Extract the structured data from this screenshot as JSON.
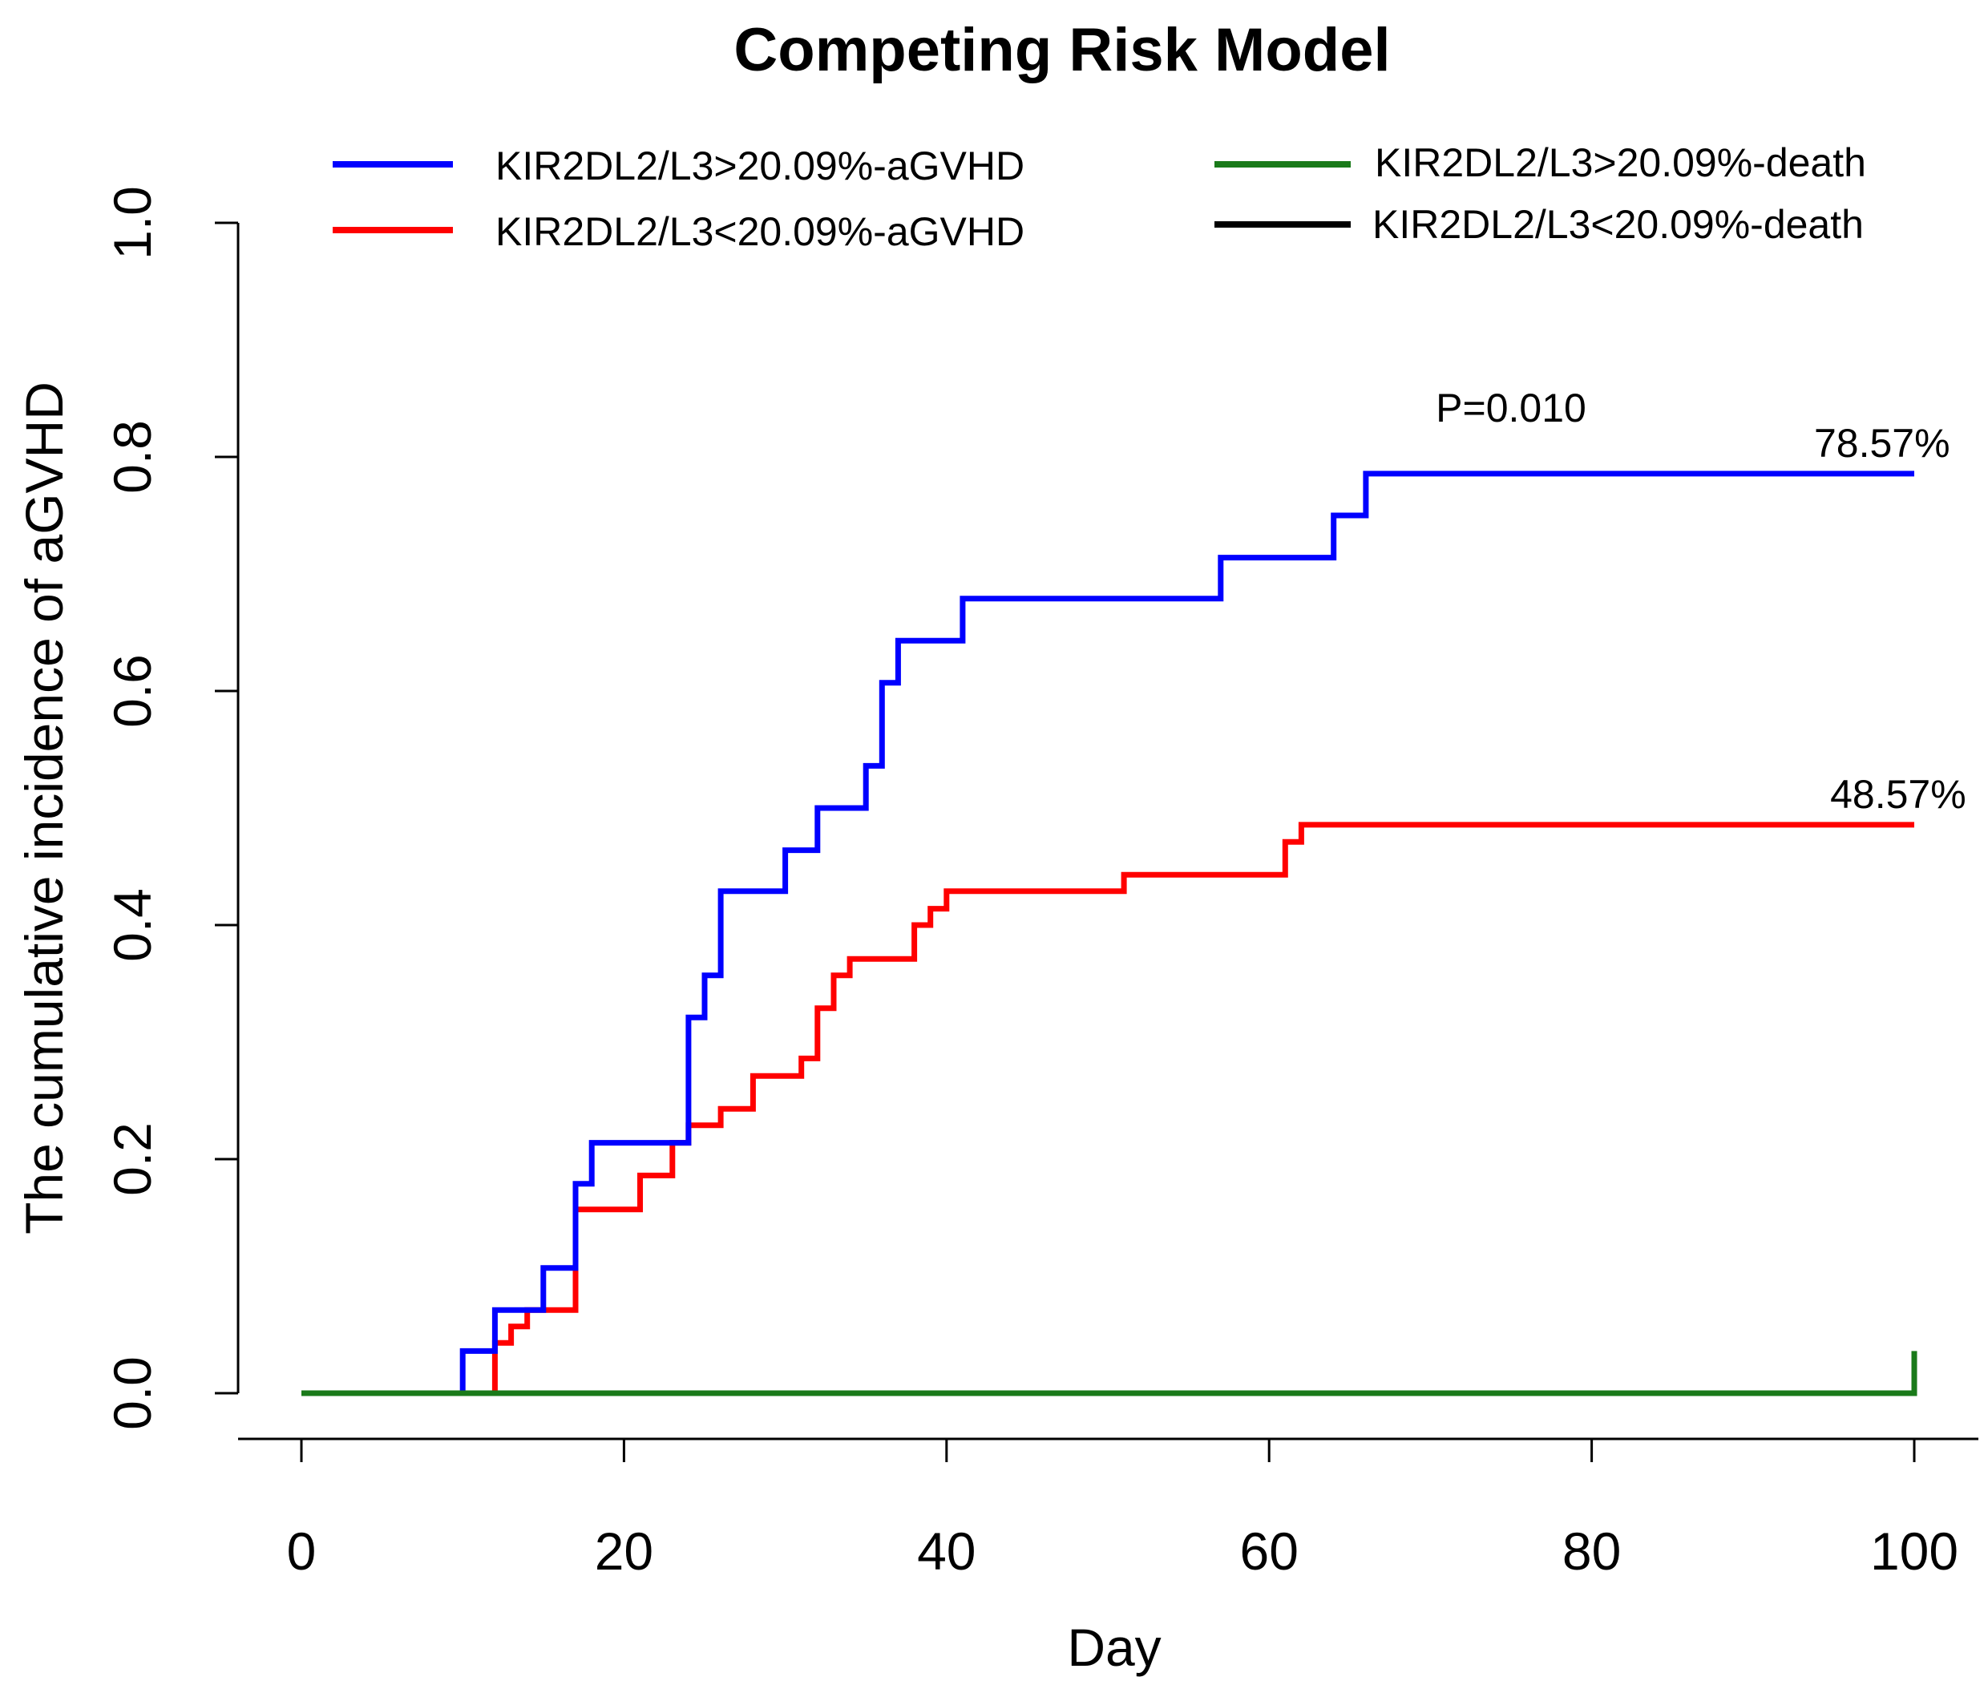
{
  "chart_data": {
    "type": "line",
    "step": true,
    "title": "Competing Risk Model",
    "xlabel": "Day",
    "ylabel": "The cumulative incidence of aGVHD",
    "xlim": [
      0,
      100
    ],
    "ylim": [
      0,
      1.0
    ],
    "x_ticks": [
      0,
      20,
      40,
      60,
      80,
      100
    ],
    "x_tick_labels": [
      "0",
      "20",
      "40",
      "60",
      "80",
      "100"
    ],
    "y_ticks": [
      0.0,
      0.2,
      0.4,
      0.6,
      0.8,
      1.0
    ],
    "y_tick_labels": [
      "0.0",
      "0.2",
      "0.4",
      "0.6",
      "0.8",
      "1.0"
    ],
    "grid": false,
    "legend_position": "top",
    "series": [
      {
        "name": "KIR2DL2/L3>20.09%-aGVHD",
        "color": "#0000ff",
        "points": [
          [
            0,
            0
          ],
          [
            10,
            0
          ],
          [
            10,
            0.036
          ],
          [
            12,
            0.036
          ],
          [
            12,
            0.071
          ],
          [
            15,
            0.071
          ],
          [
            15,
            0.107
          ],
          [
            17,
            0.107
          ],
          [
            17,
            0.179
          ],
          [
            18,
            0.179
          ],
          [
            18,
            0.214
          ],
          [
            24,
            0.214
          ],
          [
            24,
            0.321
          ],
          [
            25,
            0.321
          ],
          [
            25,
            0.357
          ],
          [
            26,
            0.357
          ],
          [
            26,
            0.429
          ],
          [
            30,
            0.429
          ],
          [
            30,
            0.464
          ],
          [
            32,
            0.464
          ],
          [
            32,
            0.5
          ],
          [
            35,
            0.5
          ],
          [
            35,
            0.536
          ],
          [
            36,
            0.536
          ],
          [
            36,
            0.607
          ],
          [
            37,
            0.607
          ],
          [
            37,
            0.643
          ],
          [
            41,
            0.643
          ],
          [
            41,
            0.679
          ],
          [
            57,
            0.679
          ],
          [
            57,
            0.714
          ],
          [
            64,
            0.714
          ],
          [
            64,
            0.75
          ],
          [
            66,
            0.75
          ],
          [
            66,
            0.7857
          ],
          [
            100,
            0.7857
          ]
        ]
      },
      {
        "name": "KIR2DL2/L3<20.09%-aGVHD",
        "color": "#ff0000",
        "points": [
          [
            0,
            0
          ],
          [
            12,
            0
          ],
          [
            12,
            0.043
          ],
          [
            13,
            0.043
          ],
          [
            13,
            0.057
          ],
          [
            14,
            0.057
          ],
          [
            14,
            0.071
          ],
          [
            17,
            0.071
          ],
          [
            17,
            0.157
          ],
          [
            21,
            0.157
          ],
          [
            21,
            0.186
          ],
          [
            23,
            0.186
          ],
          [
            23,
            0.214
          ],
          [
            24,
            0.214
          ],
          [
            24,
            0.229
          ],
          [
            26,
            0.229
          ],
          [
            26,
            0.243
          ],
          [
            28,
            0.243
          ],
          [
            28,
            0.271
          ],
          [
            31,
            0.271
          ],
          [
            31,
            0.286
          ],
          [
            32,
            0.286
          ],
          [
            32,
            0.329
          ],
          [
            33,
            0.329
          ],
          [
            33,
            0.357
          ],
          [
            34,
            0.357
          ],
          [
            34,
            0.371
          ],
          [
            38,
            0.371
          ],
          [
            38,
            0.4
          ],
          [
            39,
            0.4
          ],
          [
            39,
            0.414
          ],
          [
            40,
            0.414
          ],
          [
            40,
            0.429
          ],
          [
            51,
            0.429
          ],
          [
            51,
            0.443
          ],
          [
            61,
            0.443
          ],
          [
            61,
            0.471
          ],
          [
            62,
            0.471
          ],
          [
            62,
            0.4857
          ],
          [
            100,
            0.4857
          ]
        ]
      },
      {
        "name": "KIR2DL2/L3>20.09%-death",
        "color": "#1a7a1a",
        "points": [
          [
            0,
            0
          ],
          [
            100,
            0
          ],
          [
            100,
            0.036
          ]
        ]
      },
      {
        "name": "KIR2DL2/L3<20.09%-death",
        "color": "#000000",
        "points": [
          [
            0,
            0
          ],
          [
            100,
            0
          ]
        ]
      }
    ],
    "annotations": [
      {
        "text": "P=0.010",
        "x": 75,
        "y": 0.83
      },
      {
        "text": "78.57%",
        "x": 98,
        "y": 0.8
      },
      {
        "text": "48.57%",
        "x": 99,
        "y": 0.5
      }
    ]
  }
}
